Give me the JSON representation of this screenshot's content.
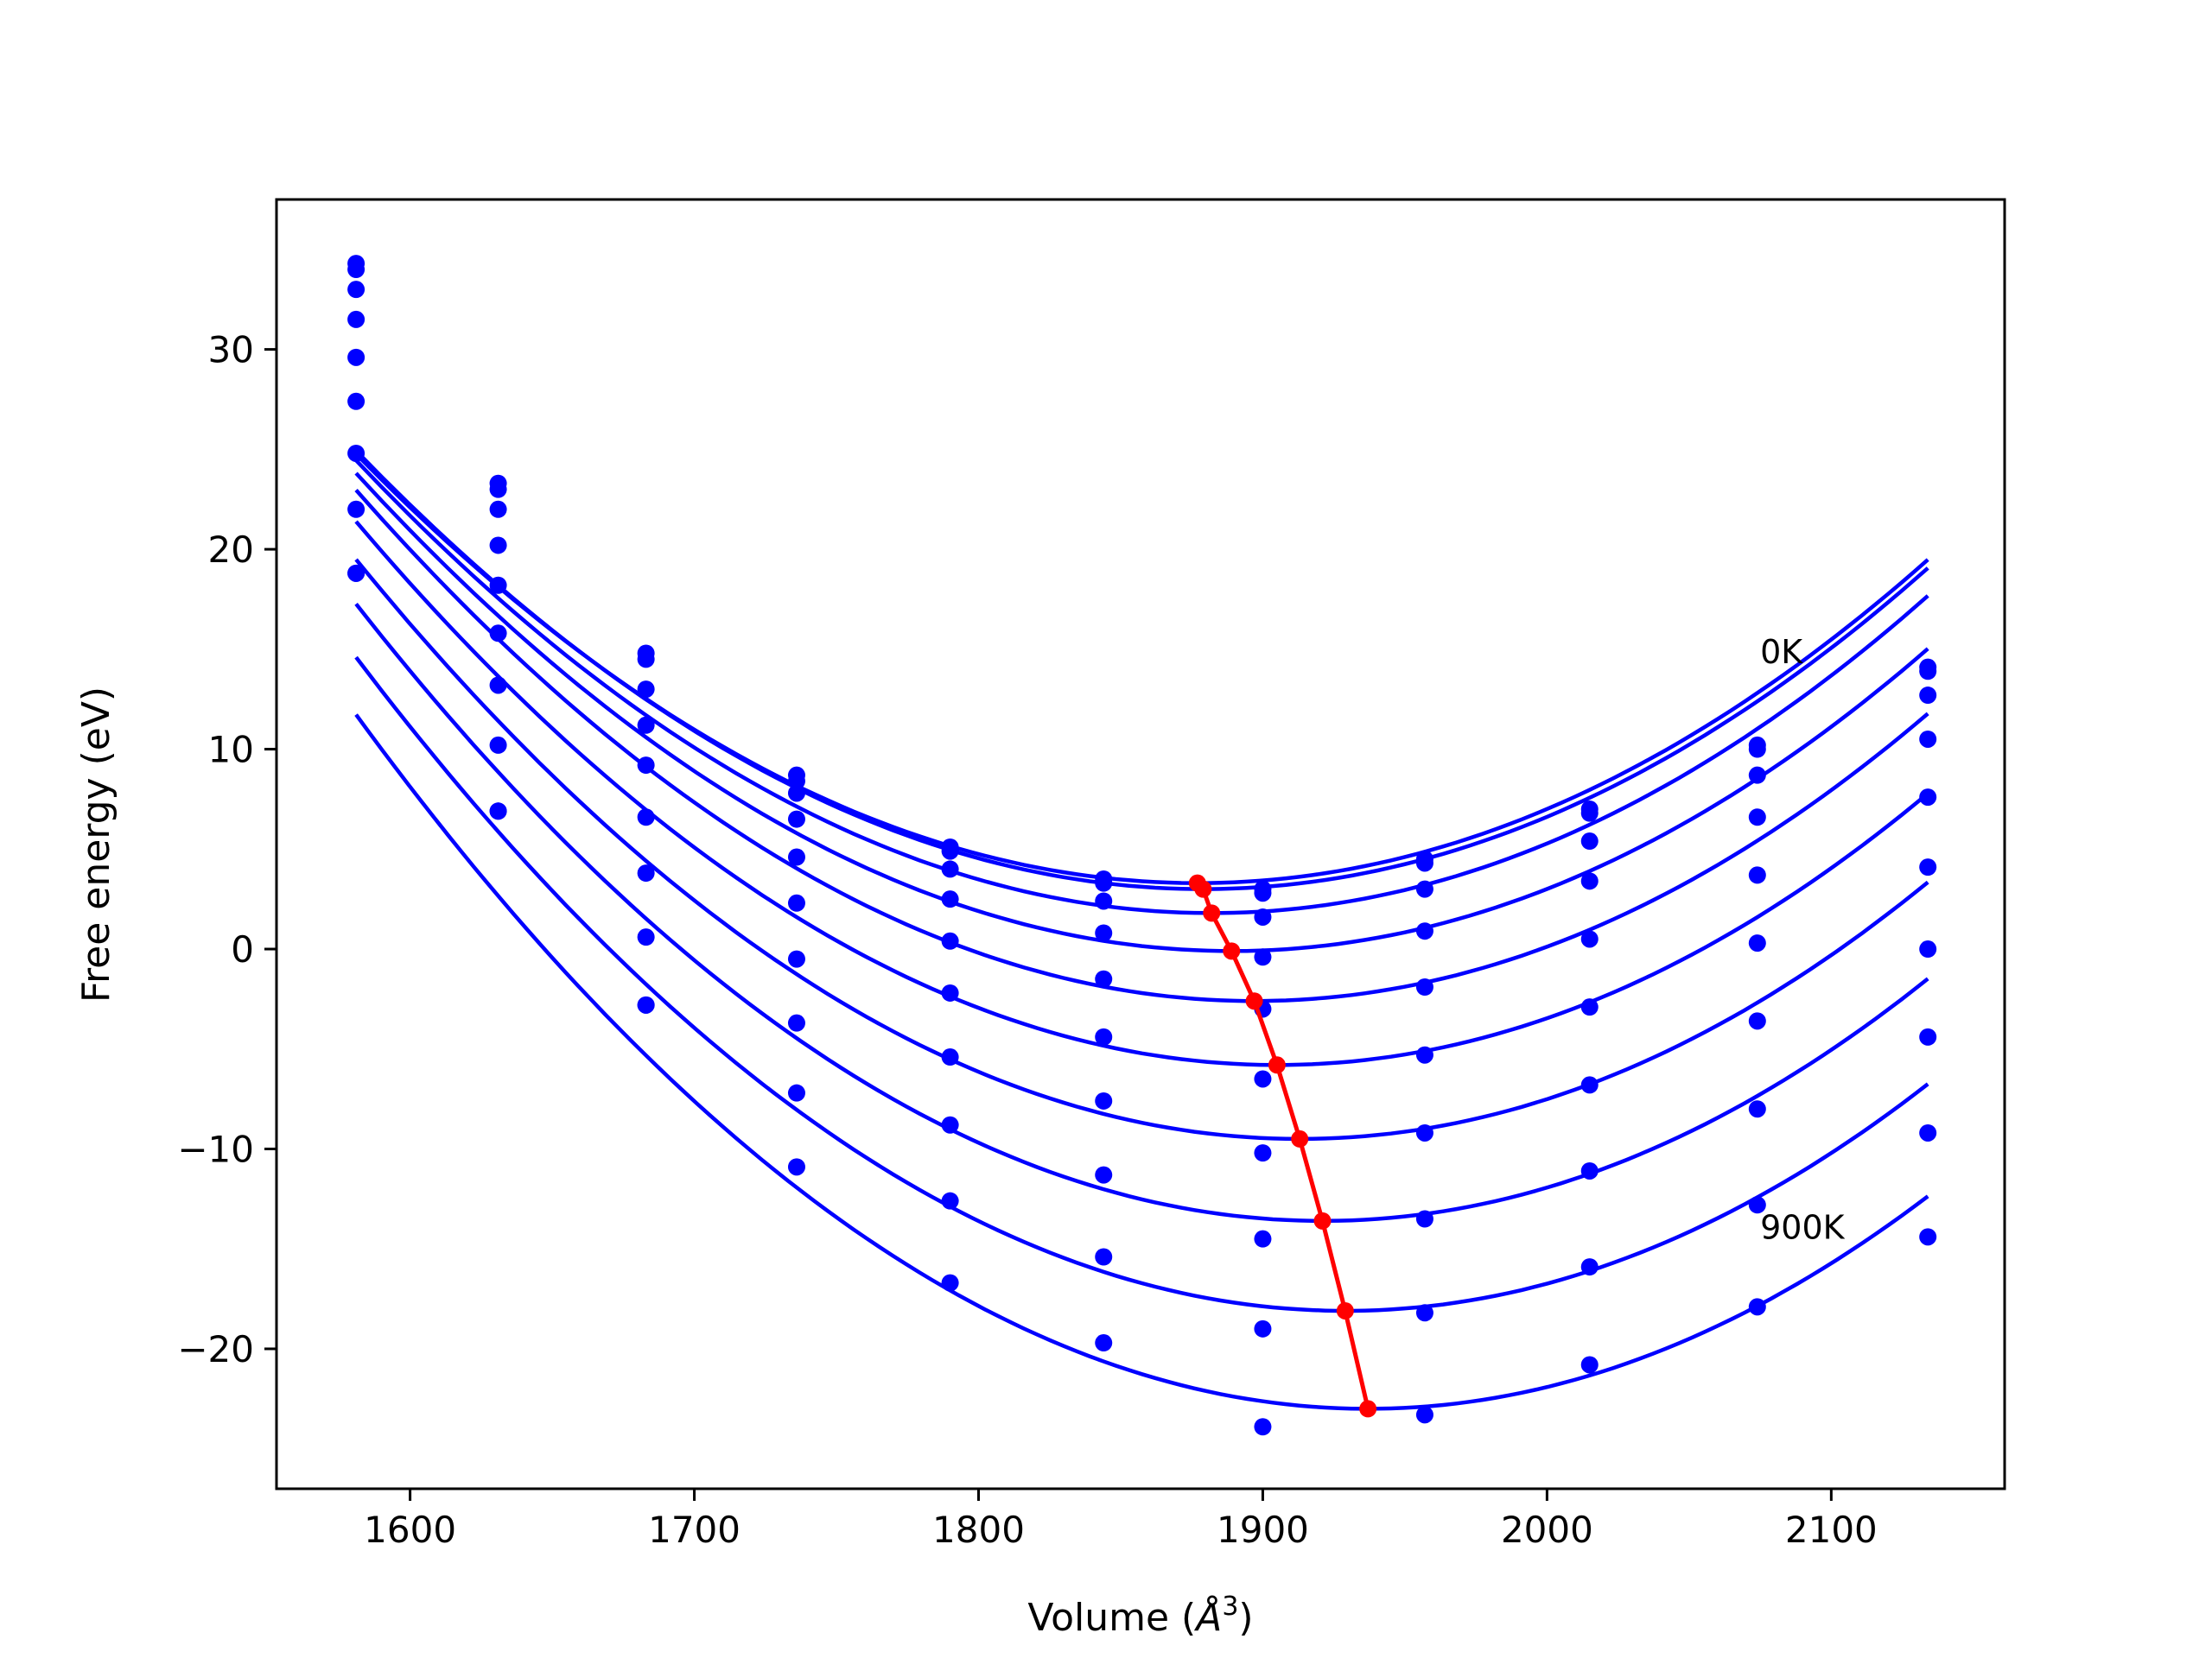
{
  "chart_data": {
    "type": "scatter",
    "xlabel": "Volume (Å³)",
    "xlabel_parts": {
      "text": "Volume (",
      "italic": "Å",
      "sup": "3",
      "close": ")"
    },
    "ylabel": "Free energy (eV)",
    "xlim": [
      1553,
      2161
    ],
    "ylim": [
      -27.0,
      37.5
    ],
    "x_ticks": [
      1600,
      1700,
      1800,
      1900,
      2000,
      2100
    ],
    "x_tick_labels": [
      "1600",
      "1700",
      "1800",
      "1900",
      "2000",
      "2100"
    ],
    "y_ticks": [
      -20,
      -10,
      0,
      10,
      20,
      30
    ],
    "y_tick_labels": [
      "−20",
      "−10",
      "0",
      "10",
      "20",
      "30"
    ],
    "grid": false,
    "colors": {
      "curves": "#0000ff",
      "minima": "#ff0000"
    },
    "annotations": [
      {
        "text": "0K",
        "x": 2075,
        "y": 14.3
      },
      {
        "text": "900K",
        "x": 2075,
        "y": -14.5
      }
    ],
    "volumes": [
      1581,
      1631,
      1683,
      1736,
      1790,
      1844,
      1900,
      1957,
      2015,
      2074,
      2134
    ],
    "series": [
      {
        "label": "0K",
        "a": 0.000245,
        "v0": 1877,
        "e0": 3.3,
        "points": [
          34.3,
          23.3,
          14.8,
          8.7,
          5.1,
          3.5,
          3.0,
          4.5,
          7.0,
          10.2,
          14.1
        ]
      },
      {
        "a": 0.000247,
        "v0": 1879,
        "e0": 3.0,
        "points": [
          34.0,
          23.0,
          14.5,
          8.4,
          4.9,
          3.3,
          2.8,
          4.3,
          6.8,
          10.0,
          13.9
        ]
      },
      {
        "a": 0.00025,
        "v0": 1882,
        "e0": 1.8,
        "points": [
          33.0,
          22.0,
          13.0,
          7.8,
          4.0,
          2.4,
          1.6,
          3.0,
          5.4,
          8.7,
          12.7
        ]
      },
      {
        "a": 0.000252,
        "v0": 1889,
        "e0": -0.1,
        "points": [
          31.5,
          20.2,
          11.2,
          6.5,
          2.5,
          0.8,
          -0.4,
          0.9,
          3.4,
          6.6,
          10.5
        ]
      },
      {
        "a": 0.000256,
        "v0": 1897,
        "e0": -2.6,
        "points": [
          29.6,
          18.2,
          9.2,
          4.6,
          0.4,
          -1.5,
          -3.0,
          -1.9,
          0.5,
          3.7,
          7.6
        ]
      },
      {
        "a": 0.000259,
        "v0": 1905,
        "e0": -5.8,
        "points": [
          27.4,
          15.8,
          6.6,
          2.3,
          -2.2,
          -4.4,
          -6.5,
          -5.3,
          -2.9,
          0.3,
          4.1
        ]
      },
      {
        "a": 0.000263,
        "v0": 1913,
        "e0": -9.5,
        "points": [
          24.8,
          13.2,
          3.8,
          -0.5,
          -5.4,
          -7.6,
          -10.2,
          -9.2,
          -6.8,
          -3.6,
          0.0
        ]
      },
      {
        "a": 0.000267,
        "v0": 1921,
        "e0": -13.6,
        "points": [
          22.0,
          10.2,
          0.6,
          -3.7,
          -8.8,
          -11.3,
          -14.5,
          -13.5,
          -11.1,
          -8.0,
          -4.4
        ]
      },
      {
        "a": 0.00027,
        "v0": 1929,
        "e0": -18.1,
        "points": [
          18.8,
          6.9,
          -2.8,
          -7.2,
          -12.6,
          -15.4,
          -19.0,
          -18.2,
          -15.9,
          -12.8,
          -9.2
        ]
      },
      {
        "label": "900K",
        "a": 0.000274,
        "v0": 1937,
        "e0": -23.0,
        "points": [
          18.8,
          6.9,
          -2.8,
          -10.9,
          -16.7,
          -19.7,
          -23.9,
          -23.3,
          -20.8,
          -17.9,
          -14.4
        ]
      }
    ],
    "minima_line": {
      "x": [
        1877,
        1879,
        1882,
        1889,
        1897,
        1905,
        1913,
        1921,
        1929,
        1937
      ],
      "y": [
        3.3,
        3.0,
        1.8,
        -0.1,
        -2.6,
        -5.8,
        -9.5,
        -13.6,
        -18.1,
        -23.0
      ]
    }
  }
}
